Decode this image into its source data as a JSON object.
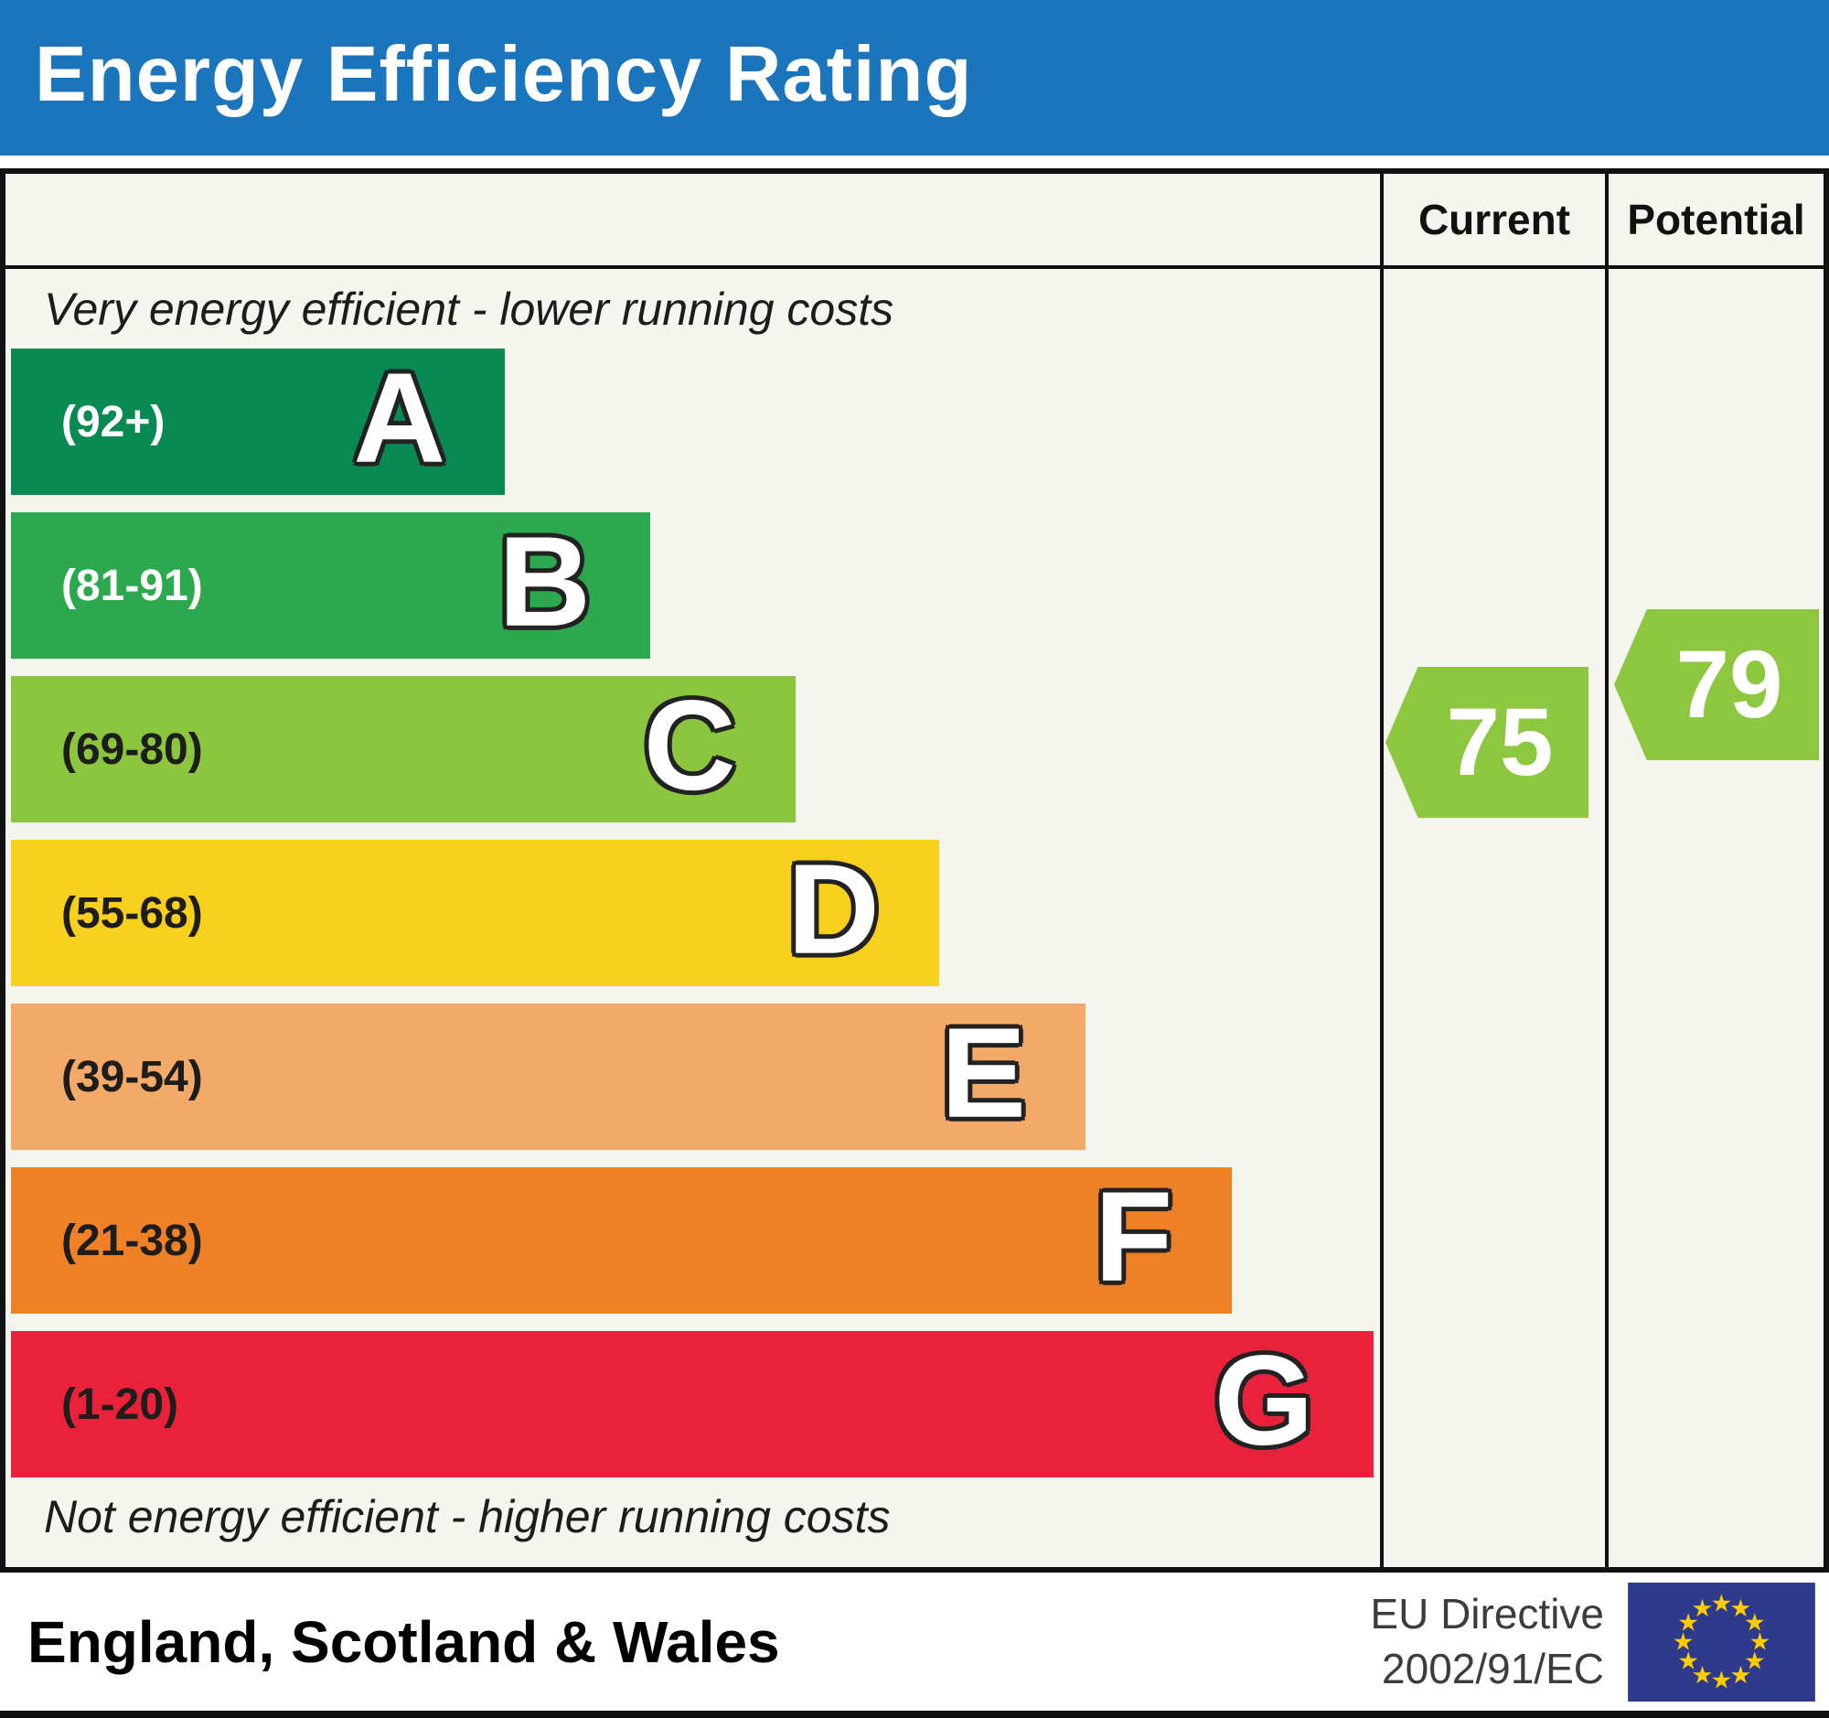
{
  "title": "Energy Efficiency Rating",
  "columns": {
    "current": "Current",
    "potential": "Potential"
  },
  "captions": {
    "top": "Very energy efficient - lower running costs",
    "bottom": "Not energy efficient - higher running costs"
  },
  "colors": {
    "header_blue": "#1b75bc",
    "panel_bg": "#f5f5f0",
    "border": "#111111",
    "band_green_c": "#8bc63e"
  },
  "chart_data": {
    "type": "bar",
    "title": "Energy Efficiency Rating",
    "bands": [
      {
        "letter": "A",
        "range": "(92+)",
        "color": "#0a8a53",
        "label_color": "#ffffff",
        "width_pct": 36.1
      },
      {
        "letter": "B",
        "range": "(81-91)",
        "color": "#2ca94f",
        "label_color": "#ffffff",
        "width_pct": 46.7
      },
      {
        "letter": "C",
        "range": "(69-80)",
        "color": "#8bc63e",
        "label_color": "#1d1d1b",
        "width_pct": 57.3
      },
      {
        "letter": "D",
        "range": "(55-68)",
        "color": "#f7d01e",
        "label_color": "#1d1d1b",
        "width_pct": 67.8
      },
      {
        "letter": "E",
        "range": "(39-54)",
        "color": "#f3a968",
        "label_color": "#1d1d1b",
        "width_pct": 78.5
      },
      {
        "letter": "F",
        "range": "(21-38)",
        "color": "#ee8126",
        "label_color": "#1d1d1b",
        "width_pct": 89.2
      },
      {
        "letter": "G",
        "range": "(1-20)",
        "color": "#e9213b",
        "label_color": "#1d1d1b",
        "width_pct": 99.5
      }
    ],
    "current": {
      "value": 75,
      "band": "C",
      "color": "#8dc63f"
    },
    "potential": {
      "value": 79,
      "band": "C",
      "color": "#8dc63f"
    }
  },
  "footer": {
    "region": "England, Scotland & Wales",
    "directive_line1": "EU Directive",
    "directive_line2": "2002/91/EC",
    "eu_flag": {
      "background": "#2e3a8c",
      "star_color": "#ffcc00",
      "star_count": 12
    }
  }
}
